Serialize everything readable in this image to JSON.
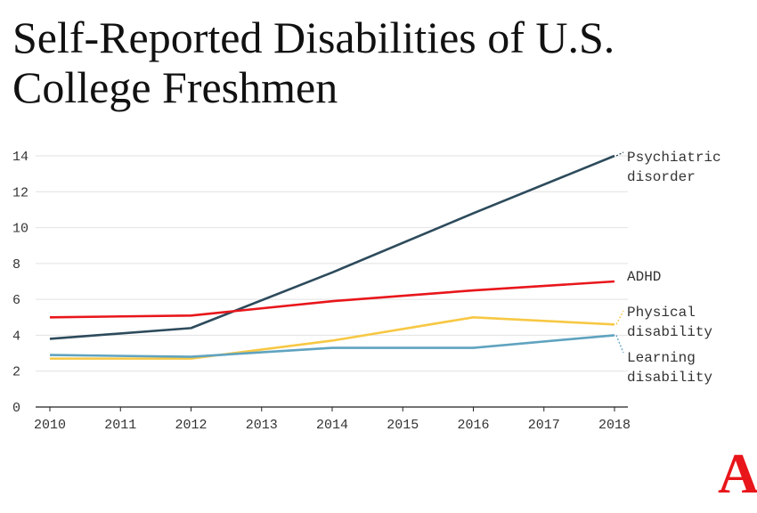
{
  "chart_data": {
    "type": "line",
    "title": "Self-Reported Disabilities of U.S. College Freshmen",
    "x": [
      2010,
      2012,
      2014,
      2016,
      2018
    ],
    "x_ticks": [
      "2010",
      "2011",
      "2012",
      "2013",
      "2014",
      "2015",
      "2016",
      "2017",
      "2018"
    ],
    "y_ticks": [
      "0",
      "2",
      "4",
      "6",
      "8",
      "10",
      "12",
      "14"
    ],
    "ylim": [
      0,
      14
    ],
    "xlim": [
      2010,
      2018
    ],
    "grid": "horizontal",
    "legend": "direct labels at right end",
    "series": [
      {
        "name": "Psychiatric disorder",
        "label_lines": [
          "Psychiatric",
          "disorder"
        ],
        "color": "#2d4b5c",
        "values": [
          3.8,
          4.4,
          7.5,
          10.8,
          14.0
        ]
      },
      {
        "name": "ADHD",
        "label_lines": [
          "ADHD"
        ],
        "color": "#e8161b",
        "values": [
          5.0,
          5.1,
          5.9,
          6.5,
          7.0
        ]
      },
      {
        "name": "Physical disability",
        "label_lines": [
          "Physical",
          "disability"
        ],
        "color": "#f7c844",
        "values": [
          2.7,
          2.7,
          3.7,
          5.0,
          4.6
        ]
      },
      {
        "name": "Learning disability",
        "label_lines": [
          "Learning",
          "disability"
        ],
        "color": "#5fa3c0",
        "values": [
          2.9,
          2.8,
          3.3,
          3.3,
          4.0
        ]
      }
    ]
  },
  "logo": "A"
}
